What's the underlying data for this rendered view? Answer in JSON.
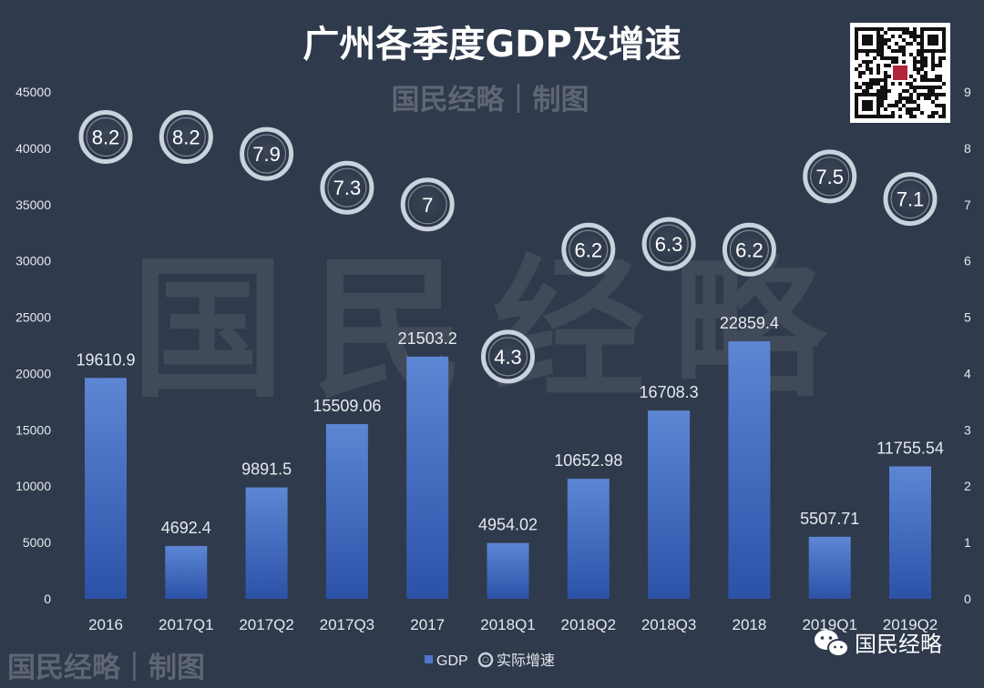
{
  "chart_data": {
    "type": "bar",
    "title": "广州各季度GDP及增速",
    "categories": [
      "2016",
      "2017Q1",
      "2017Q2",
      "2017Q3",
      "2017",
      "2018Q1",
      "2018Q2",
      "2018Q3",
      "2018",
      "2019Q1",
      "2019Q2"
    ],
    "series": [
      {
        "name": "GDP",
        "axis": "left",
        "type": "bar",
        "values": [
          19610.9,
          4692.4,
          9891.5,
          15509.06,
          21503.2,
          4954.02,
          10652.98,
          16708.3,
          22859.4,
          5507.71,
          11755.54
        ],
        "labels": [
          "19610.9",
          "4692.4",
          "9891.5",
          "15509.06",
          "21503.2",
          "4954.02",
          "10652.98",
          "16708.3",
          "22859.4",
          "5507.71",
          "11755.54"
        ]
      },
      {
        "name": "实际增速",
        "axis": "right",
        "type": "scatter",
        "values": [
          8.2,
          8.2,
          7.9,
          7.3,
          7,
          4.3,
          6.2,
          6.3,
          6.2,
          7.5,
          7.1
        ],
        "labels": [
          "8.2",
          "8.2",
          "7.9",
          "7.3",
          "7",
          "4.3",
          "6.2",
          "6.3",
          "6.2",
          "7.5",
          "7.1"
        ]
      }
    ],
    "ylim": [
      0,
      45000
    ],
    "y_ticks": [
      "0",
      "5000",
      "10000",
      "15000",
      "20000",
      "25000",
      "30000",
      "35000",
      "40000",
      "45000"
    ],
    "y2lim": [
      0,
      9
    ],
    "y2_ticks": [
      "0",
      "1",
      "2",
      "3",
      "4",
      "5",
      "6",
      "7",
      "8",
      "9"
    ],
    "grid": false,
    "legend_position": "bottom-center"
  },
  "watermark": {
    "top_text": "国民经略｜制图",
    "center_text": "国民经略",
    "bottom_text": "国民经略｜制图"
  },
  "brand": {
    "name": "国民经略",
    "icon": "wechat-icon",
    "qr_icon": "qr-code-icon"
  },
  "colors": {
    "background": "#2f3a4c",
    "bar_top": "#5d86d4",
    "bar_bottom": "#2c52a8",
    "marker_ring": "#c9d2dd",
    "text": "#e6e9ee"
  }
}
